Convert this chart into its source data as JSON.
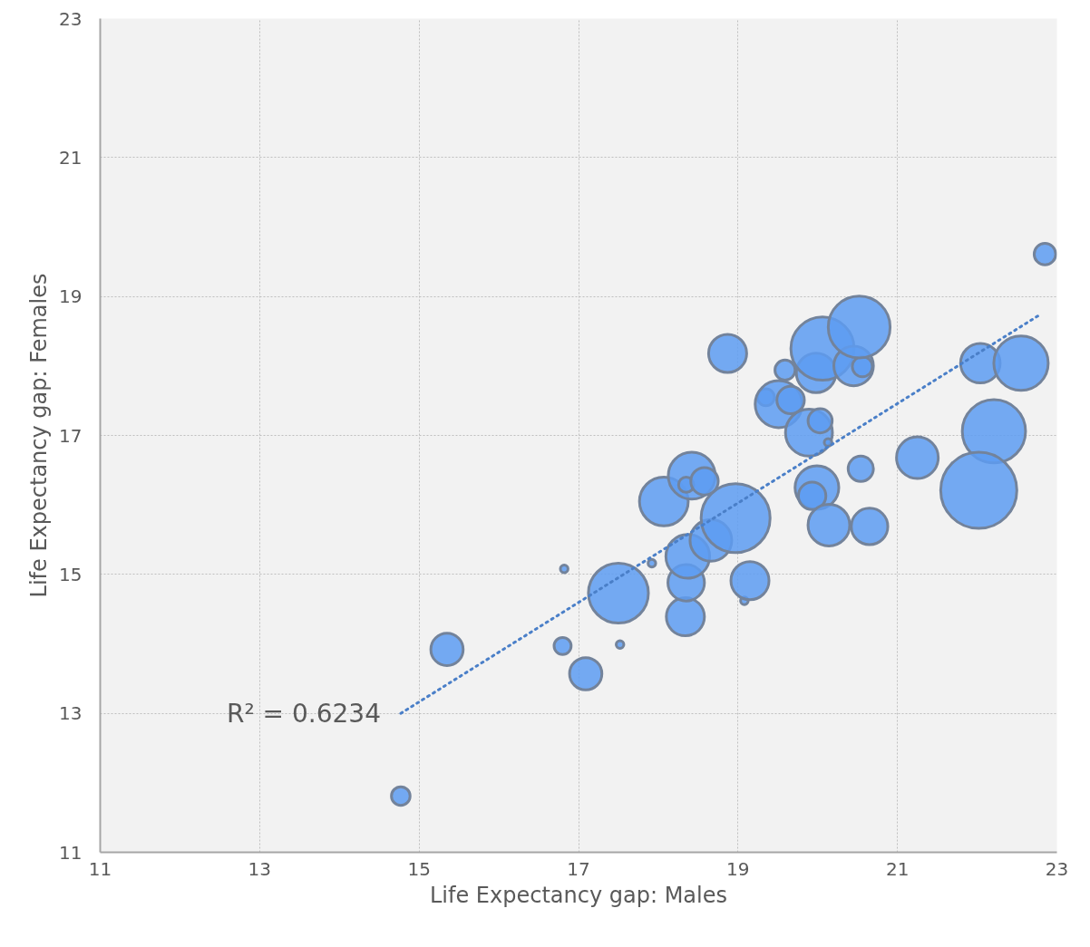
{
  "chart_data": {
    "type": "bubble",
    "xlabel": "Life Expectancy gap: Males",
    "ylabel": "Life Expectancy gap: Females",
    "xlim": [
      11,
      23
    ],
    "ylim": [
      11,
      23
    ],
    "xticks": [
      11,
      13,
      15,
      17,
      19,
      21,
      23
    ],
    "yticks": [
      11,
      13,
      15,
      17,
      19,
      21,
      23
    ],
    "grid": true,
    "series": [
      {
        "color": "#5d9cf2",
        "x": [
          14.77,
          15.35,
          16.8,
          16.82,
          17.09,
          17.52,
          17.5,
          17.92,
          18.07,
          18.34,
          18.35,
          18.37,
          18.42,
          18.35,
          18.58,
          18.66,
          18.97,
          19.08,
          19.15,
          18.87,
          19.35,
          19.51,
          19.66,
          19.59,
          19.89,
          20.03,
          20.13,
          19.98,
          20.06,
          20.45,
          20.56,
          20.52,
          19.99,
          19.93,
          20.14,
          20.65,
          20.54,
          21.25,
          22.04,
          22.55,
          22.21,
          22.02,
          22.85
        ],
        "values": [
          11.81,
          13.92,
          13.97,
          15.08,
          13.57,
          13.99,
          14.73,
          15.16,
          16.05,
          14.39,
          14.88,
          15.26,
          16.42,
          16.29,
          16.34,
          15.49,
          15.81,
          14.62,
          14.91,
          18.18,
          17.55,
          17.45,
          17.51,
          17.94,
          17.04,
          17.21,
          16.9,
          17.9,
          18.25,
          18.0,
          17.99,
          18.56,
          16.25,
          16.13,
          15.71,
          15.69,
          16.52,
          16.68,
          18.04,
          18.04,
          17.06,
          16.21,
          19.61
        ],
        "sizes": [
          0.06,
          0.18,
          0.05,
          0.01,
          0.18,
          0.01,
          0.62,
          0.01,
          0.41,
          0.25,
          0.23,
          0.33,
          0.38,
          0.04,
          0.13,
          0.3,
          0.82,
          0.01,
          0.25,
          0.25,
          0.05,
          0.38,
          0.13,
          0.07,
          0.38,
          0.1,
          0.01,
          0.27,
          0.69,
          0.27,
          0.07,
          0.66,
          0.33,
          0.13,
          0.3,
          0.23,
          0.11,
          0.3,
          0.27,
          0.51,
          0.69,
          1,
          0.08
        ]
      },
      {
        "type": "line",
        "color": "#4a7fc8",
        "line_style": "dotted",
        "marker": "none",
        "x": [
          14.77,
          22.79
        ],
        "values": [
          13.0,
          18.74
        ]
      }
    ],
    "annotations": [
      {
        "text": "R² = 0.6234",
        "x": 14.77,
        "y": 13.0
      }
    ]
  }
}
